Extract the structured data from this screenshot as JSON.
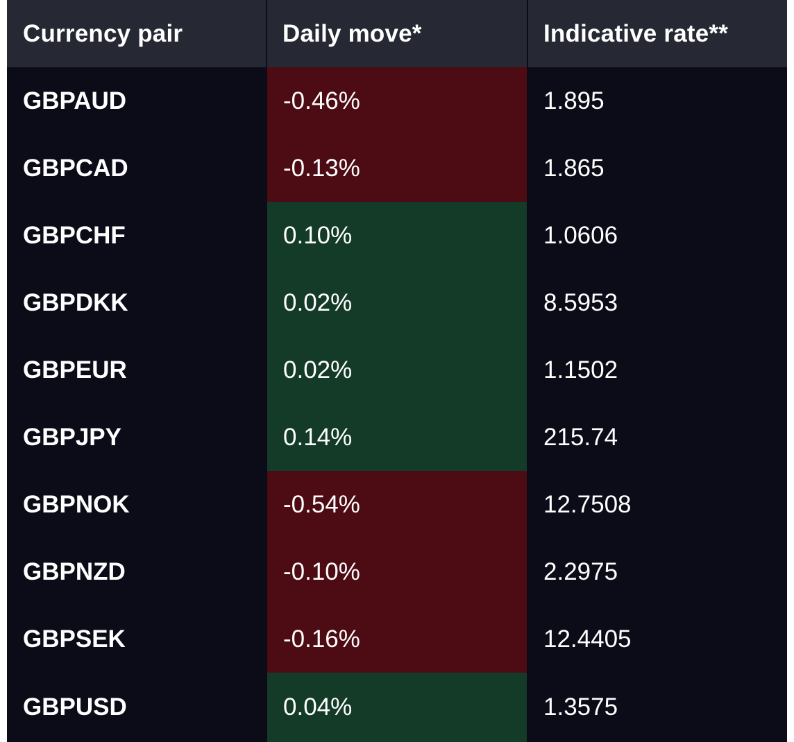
{
  "header": {
    "col1": "Currency pair",
    "col2": "Daily move*",
    "col3": "Indicative rate**"
  },
  "rows": [
    {
      "pair": "GBPAUD",
      "move": "-0.46%",
      "direction": "down",
      "rate": "1.895"
    },
    {
      "pair": "GBPCAD",
      "move": "-0.13%",
      "direction": "down",
      "rate": "1.865"
    },
    {
      "pair": "GBPCHF",
      "move": "0.10%",
      "direction": "up",
      "rate": "1.0606"
    },
    {
      "pair": "GBPDKK",
      "move": "0.02%",
      "direction": "up",
      "rate": "8.5953"
    },
    {
      "pair": "GBPEUR",
      "move": "0.02%",
      "direction": "up",
      "rate": "1.1502"
    },
    {
      "pair": "GBPJPY",
      "move": "0.14%",
      "direction": "up",
      "rate": "215.74"
    },
    {
      "pair": "GBPNOK",
      "move": "-0.54%",
      "direction": "down",
      "rate": "12.7508"
    },
    {
      "pair": "GBPNZD",
      "move": "-0.10%",
      "direction": "down",
      "rate": "2.2975"
    },
    {
      "pair": "GBPSEK",
      "move": "-0.16%",
      "direction": "down",
      "rate": "12.4405"
    },
    {
      "pair": "GBPUSD",
      "move": "0.04%",
      "direction": "up",
      "rate": "1.3575"
    }
  ],
  "colors": {
    "background": "#0b0c17",
    "header": "#262833",
    "negative": "#4d0b14",
    "positive": "#143a28",
    "text": "#ffffff"
  }
}
